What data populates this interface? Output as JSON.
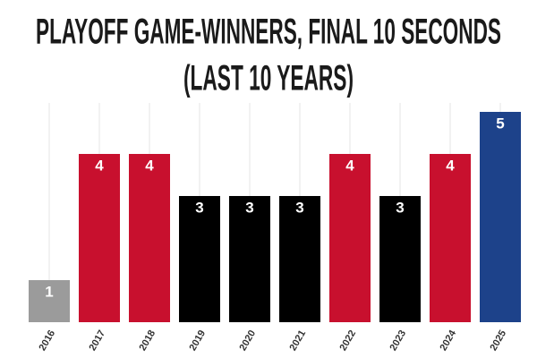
{
  "chart_data": {
    "type": "bar",
    "title": [
      "PLAYOFF GAME-WINNERS, FINAL 10 SECONDS",
      "(LAST 10 YEARS)"
    ],
    "categories": [
      "2016",
      "2017",
      "2018",
      "2019",
      "2020",
      "2021",
      "2022",
      "2023",
      "2024",
      "2025"
    ],
    "values": [
      1,
      4,
      4,
      3,
      3,
      3,
      4,
      3,
      4,
      5
    ],
    "colors": [
      "#9b9b9b",
      "#c8102e",
      "#c8102e",
      "#000000",
      "#000000",
      "#000000",
      "#c8102e",
      "#000000",
      "#c8102e",
      "#1d428a"
    ],
    "ylim": [
      0,
      5
    ],
    "grid": true
  }
}
